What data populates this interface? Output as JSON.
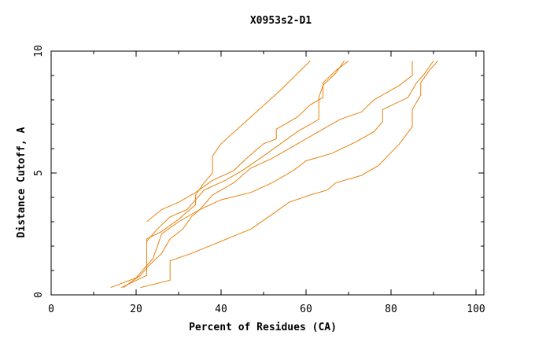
{
  "chart_data": {
    "type": "line",
    "title": "X0953s2-D1",
    "xlabel": "Percent of Residues (CA)",
    "ylabel": "Distance Cutoff, A",
    "xlim": [
      0,
      100
    ],
    "ylim": [
      0,
      10
    ],
    "x_ticks": [
      "0",
      "20",
      "40",
      "60",
      "80",
      "100"
    ],
    "y_ticks": [
      "0",
      "5",
      "10"
    ],
    "grid": false,
    "legend": "none",
    "line_color": "#e8820c",
    "series": [
      {
        "points": [
          [
            16.5,
            0.3
          ],
          [
            22.5,
            0.8
          ],
          [
            22.5,
            2.3
          ],
          [
            26,
            2.6
          ],
          [
            30,
            3.1
          ],
          [
            34,
            3.7
          ],
          [
            34,
            4.1
          ],
          [
            36,
            4.6
          ],
          [
            38,
            5.0
          ],
          [
            38,
            5.7
          ],
          [
            40,
            6.2
          ],
          [
            47,
            7.3
          ],
          [
            54,
            8.4
          ],
          [
            61,
            9.6
          ]
        ]
      },
      {
        "points": [
          [
            14,
            0.3
          ],
          [
            20,
            0.7
          ],
          [
            24,
            1.5
          ],
          [
            25,
            2.0
          ],
          [
            26,
            2.5
          ],
          [
            30,
            3.0
          ],
          [
            35,
            3.5
          ],
          [
            38,
            4.1
          ],
          [
            43,
            4.6
          ],
          [
            47,
            5.2
          ],
          [
            52,
            5.6
          ],
          [
            57,
            6.1
          ],
          [
            63,
            6.7
          ],
          [
            68,
            7.2
          ],
          [
            73,
            7.5
          ],
          [
            76,
            8.0
          ],
          [
            82,
            8.6
          ],
          [
            85,
            9.0
          ],
          [
            85,
            9.6
          ]
        ]
      },
      {
        "points": [
          [
            21,
            0.3
          ],
          [
            28,
            0.6
          ],
          [
            28,
            1.4
          ],
          [
            33,
            1.7
          ],
          [
            40,
            2.2
          ],
          [
            47,
            2.7
          ],
          [
            52,
            3.3
          ],
          [
            56,
            3.8
          ],
          [
            61,
            4.1
          ],
          [
            65,
            4.3
          ],
          [
            67,
            4.6
          ],
          [
            73,
            4.9
          ],
          [
            77,
            5.3
          ],
          [
            82,
            6.2
          ],
          [
            85,
            6.9
          ],
          [
            85,
            7.6
          ],
          [
            87,
            8.2
          ],
          [
            87,
            8.7
          ],
          [
            89,
            9.2
          ],
          [
            91,
            9.6
          ]
        ]
      },
      {
        "points": [
          [
            17,
            0.3
          ],
          [
            21,
            0.8
          ],
          [
            23,
            1.2
          ],
          [
            26,
            1.7
          ],
          [
            28,
            2.3
          ],
          [
            31,
            2.7
          ],
          [
            33,
            3.2
          ],
          [
            35,
            3.5
          ],
          [
            40,
            3.9
          ],
          [
            47,
            4.2
          ],
          [
            52,
            4.6
          ],
          [
            57,
            5.1
          ],
          [
            60,
            5.5
          ],
          [
            66,
            5.8
          ],
          [
            72,
            6.3
          ],
          [
            76,
            6.7
          ],
          [
            78,
            7.1
          ],
          [
            78,
            7.6
          ],
          [
            84,
            8.1
          ],
          [
            86,
            8.7
          ],
          [
            88,
            9.1
          ],
          [
            90,
            9.6
          ]
        ]
      },
      {
        "points": [
          [
            22.5,
            2.2
          ],
          [
            25,
            2.7
          ],
          [
            28,
            3.2
          ],
          [
            32,
            3.5
          ],
          [
            36,
            4.3
          ],
          [
            41,
            4.7
          ],
          [
            45,
            5.1
          ],
          [
            50,
            5.7
          ],
          [
            54,
            6.2
          ],
          [
            58,
            6.7
          ],
          [
            63,
            7.2
          ],
          [
            63,
            8.1
          ],
          [
            64,
            8.6
          ],
          [
            67,
            9.1
          ],
          [
            69,
            9.6
          ]
        ]
      },
      {
        "points": [
          [
            22.5,
            3.0
          ],
          [
            26,
            3.5
          ],
          [
            30,
            3.8
          ],
          [
            34,
            4.2
          ],
          [
            38,
            4.7
          ],
          [
            43,
            5.1
          ],
          [
            46,
            5.6
          ],
          [
            50,
            6.2
          ],
          [
            53,
            6.4
          ],
          [
            53,
            6.8
          ],
          [
            56,
            7.1
          ],
          [
            58,
            7.3
          ],
          [
            61,
            7.8
          ],
          [
            64,
            8.1
          ],
          [
            64,
            8.7
          ],
          [
            67,
            9.2
          ],
          [
            70,
            9.6
          ]
        ]
      }
    ]
  }
}
